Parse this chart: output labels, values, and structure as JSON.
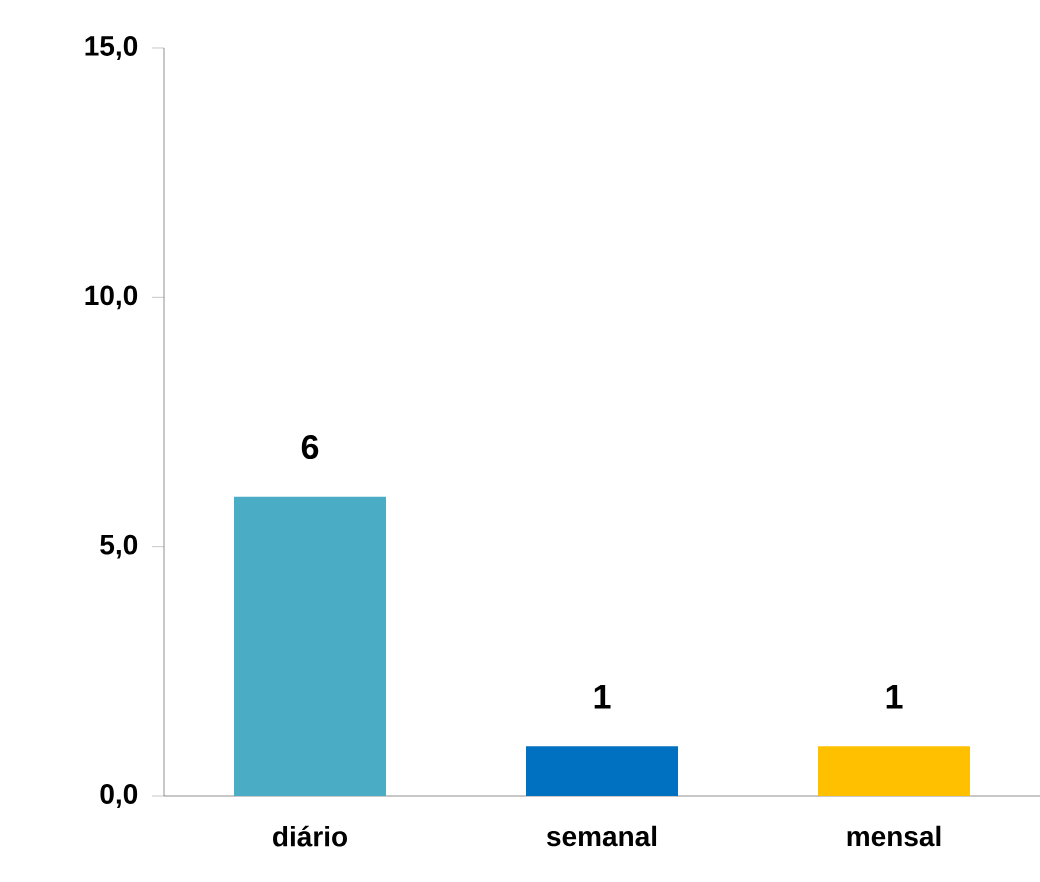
{
  "chart_data": {
    "type": "bar",
    "categories": [
      "diário",
      "semanal",
      "mensal"
    ],
    "values": [
      6,
      1,
      1
    ],
    "value_labels": [
      "6",
      "1",
      "1"
    ],
    "colors": [
      "#4bacc6",
      "#0070c0",
      "#ffc000"
    ],
    "ylim": [
      0,
      15
    ],
    "yticks": [
      {
        "value": 0,
        "label": "0,0"
      },
      {
        "value": 5,
        "label": "5,0"
      },
      {
        "value": 10,
        "label": "10,0"
      },
      {
        "value": 15,
        "label": "15,0"
      }
    ]
  }
}
